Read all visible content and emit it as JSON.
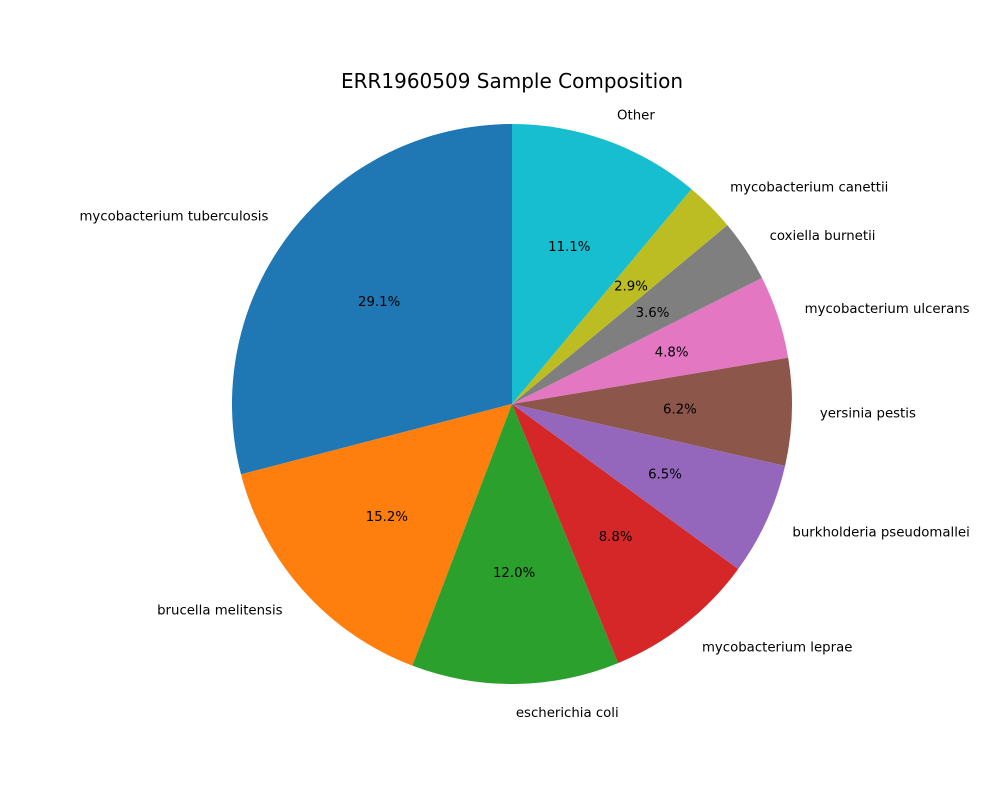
{
  "chart_data": {
    "type": "pie",
    "title": "ERR1960509 Sample Composition",
    "start_angle_deg": 90,
    "direction": "counterclockwise",
    "slices": [
      {
        "label": "mycobacterium tuberculosis",
        "value": 29.1,
        "pct_label": "29.1%",
        "color": "#1f77b4"
      },
      {
        "label": "brucella melitensis",
        "value": 15.2,
        "pct_label": "15.2%",
        "color": "#ff7f0e"
      },
      {
        "label": "escherichia coli",
        "value": 12.0,
        "pct_label": "12.0%",
        "color": "#2ca02c"
      },
      {
        "label": "mycobacterium leprae",
        "value": 8.8,
        "pct_label": "8.8%",
        "color": "#d62728"
      },
      {
        "label": "burkholderia pseudomallei",
        "value": 6.5,
        "pct_label": "6.5%",
        "color": "#9467bd"
      },
      {
        "label": "yersinia pestis",
        "value": 6.2,
        "pct_label": "6.2%",
        "color": "#8c564b"
      },
      {
        "label": "mycobacterium ulcerans",
        "value": 4.8,
        "pct_label": "4.8%",
        "color": "#e377c2"
      },
      {
        "label": "coxiella burnetii",
        "value": 3.6,
        "pct_label": "3.6%",
        "color": "#7f7f7f"
      },
      {
        "label": "mycobacterium canettii",
        "value": 2.9,
        "pct_label": "2.9%",
        "color": "#bcbd22"
      },
      {
        "label": "Other",
        "value": 11.1,
        "pct_label": "11.1%",
        "color": "#17becf"
      }
    ]
  }
}
